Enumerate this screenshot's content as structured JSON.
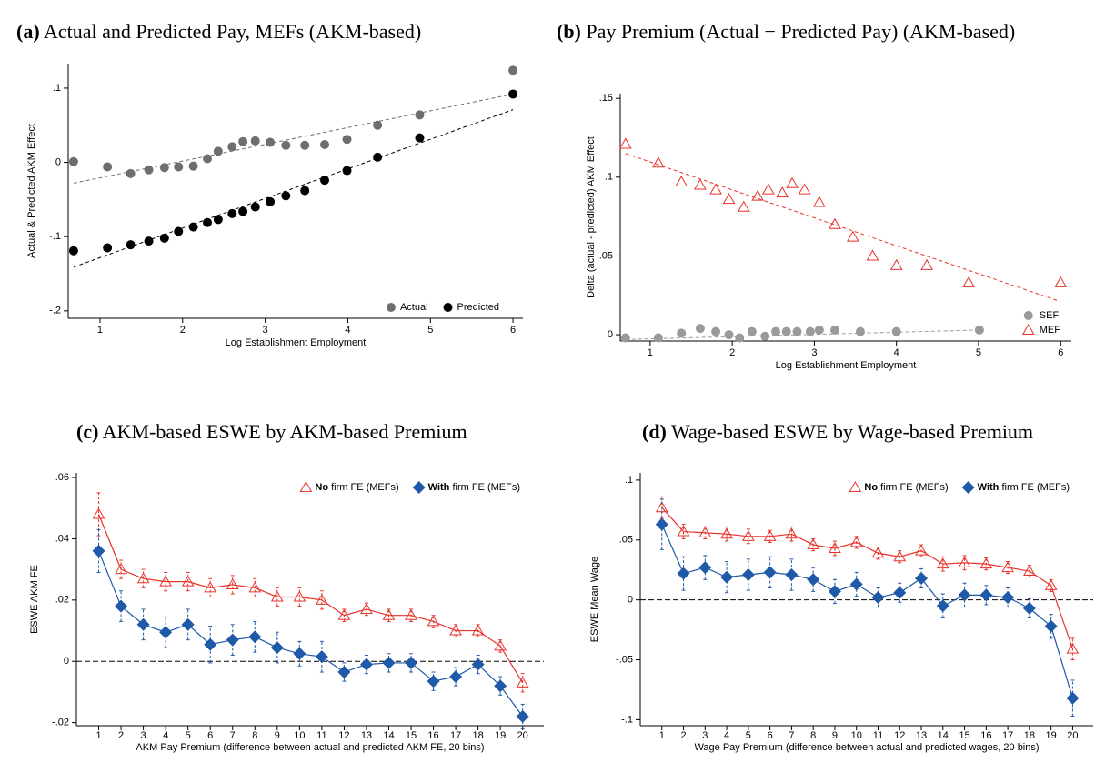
{
  "chart_data": [
    {
      "type": "scatter",
      "panel_label": "(a)",
      "title": "Actual and Predicted Pay, MEFs (AKM-based)",
      "x_label": "Log Establishment Employment",
      "y_label": "Actual & Predicted AKM Effect",
      "xlim": [
        0.615,
        6.12
      ],
      "ylim": [
        -0.21,
        0.133
      ],
      "xticks": [
        1,
        2,
        3,
        4,
        5,
        6
      ],
      "yticks": [
        {
          "value": -0.2,
          "label": "-.2"
        },
        {
          "value": -0.1,
          "label": "-.1"
        },
        0,
        {
          "value": 0.1,
          "label": ".1"
        }
      ],
      "legend": "lower right",
      "series": [
        {
          "name": "Actual",
          "color": "#6e6e6e",
          "marker": "circle",
          "x": [
            0.68,
            1.09,
            1.37,
            1.59,
            1.78,
            1.95,
            2.13,
            2.3,
            2.43,
            2.6,
            2.73,
            2.88,
            3.06,
            3.25,
            3.48,
            3.72,
            3.99,
            4.36,
            4.87,
            6.0
          ],
          "values": [
            0.001,
            -0.006,
            -0.015,
            -0.01,
            -0.007,
            -0.006,
            -0.005,
            0.005,
            0.015,
            0.021,
            0.028,
            0.029,
            0.027,
            0.023,
            0.023,
            0.024,
            0.031,
            0.05,
            0.064,
            0.124
          ],
          "fit": {
            "x": [
              0.68,
              6.0
            ],
            "values": [
              -0.028,
              0.092
            ]
          }
        },
        {
          "name": "Predicted",
          "color": "#000000",
          "marker": "circle",
          "x": [
            0.68,
            1.09,
            1.37,
            1.59,
            1.78,
            1.95,
            2.13,
            2.3,
            2.43,
            2.6,
            2.73,
            2.88,
            3.06,
            3.25,
            3.48,
            3.72,
            3.99,
            4.36,
            4.87,
            6.0
          ],
          "values": [
            -0.119,
            -0.115,
            -0.111,
            -0.106,
            -0.102,
            -0.093,
            -0.087,
            -0.081,
            -0.077,
            -0.069,
            -0.066,
            -0.06,
            -0.053,
            -0.045,
            -0.038,
            -0.024,
            -0.011,
            0.007,
            0.033,
            0.092
          ],
          "fit": {
            "x": [
              0.68,
              6.0
            ],
            "values": [
              -0.141,
              0.071
            ]
          }
        }
      ]
    },
    {
      "type": "scatter",
      "panel_label": "(b)",
      "title": "Pay Premium (Actual − Predicted Pay) (AKM-based)",
      "x_label": "Log Establishment Employment",
      "y_label": "Delta (actual - predicted) AKM Effect",
      "xlim": [
        0.636,
        6.13
      ],
      "ylim": [
        -0.004,
        0.153
      ],
      "xticks": [
        1,
        2,
        3,
        4,
        5,
        6
      ],
      "yticks": [
        0,
        {
          "value": 0.05,
          "label": ".05"
        },
        {
          "value": 0.1,
          "label": ".1"
        },
        {
          "value": 0.15,
          "label": ".15"
        }
      ],
      "legend": "lower right",
      "series": [
        {
          "name": "SEF",
          "color": "#9a9a9a",
          "marker": "circle",
          "x": [
            0.7,
            1.1,
            1.38,
            1.61,
            1.8,
            1.96,
            2.09,
            2.24,
            2.4,
            2.53,
            2.66,
            2.79,
            2.95,
            3.06,
            3.25,
            3.56,
            4.0,
            5.01
          ],
          "values": [
            -0.002,
            -0.002,
            0.001,
            0.004,
            0.002,
            0.0,
            -0.002,
            0.002,
            -0.001,
            0.002,
            0.002,
            0.002,
            0.002,
            0.003,
            0.003,
            0.002,
            0.002,
            0.003
          ],
          "fit": {
            "x": [
              0.7,
              5.01
            ],
            "values": [
              -0.003,
              0.003
            ]
          }
        },
        {
          "name": "MEF",
          "color": "#e8322a",
          "marker": "triangle",
          "x": [
            0.7,
            1.1,
            1.38,
            1.61,
            1.8,
            1.96,
            2.14,
            2.31,
            2.44,
            2.61,
            2.73,
            2.88,
            3.06,
            3.25,
            3.47,
            3.71,
            4.0,
            4.37,
            4.88,
            6.0
          ],
          "values": [
            0.121,
            0.109,
            0.097,
            0.095,
            0.092,
            0.086,
            0.081,
            0.088,
            0.092,
            0.09,
            0.096,
            0.092,
            0.084,
            0.07,
            0.062,
            0.05,
            0.044,
            0.044,
            0.033,
            0.033
          ],
          "fit": {
            "x": [
              0.7,
              6.0
            ],
            "values": [
              0.115,
              0.021
            ]
          }
        }
      ]
    },
    {
      "type": "line",
      "panel_label": "(c)",
      "title": "AKM-based ESWE by AKM-based Premium",
      "x_label": "AKM Pay Premium (difference between actual and predicted AKM FE, 20 bins)",
      "y_label": "ESWE AKM FE",
      "categories": [
        "1",
        "2",
        "3",
        "4",
        "5",
        "6",
        "7",
        "8",
        "9",
        "10",
        "11",
        "12",
        "13",
        "14",
        "15",
        "16",
        "17",
        "18",
        "19",
        "20"
      ],
      "ylim": [
        -0.021,
        0.0615
      ],
      "yticks": [
        {
          "value": -0.02,
          "label": "-.02"
        },
        0,
        {
          "value": 0.02,
          "label": ".02"
        },
        {
          "value": 0.04,
          "label": ".04"
        },
        {
          "value": 0.06,
          "label": ".06"
        }
      ],
      "hline": 0,
      "legend": "upper right",
      "series": [
        {
          "name": "No firm FE (MEFs)",
          "color": "#e8322a",
          "marker": "triangle",
          "values": [
            0.048,
            0.03,
            0.027,
            0.026,
            0.026,
            0.024,
            0.025,
            0.024,
            0.021,
            0.021,
            0.02,
            0.015,
            0.017,
            0.015,
            0.015,
            0.013,
            0.01,
            0.01,
            0.005,
            -0.007
          ],
          "errors": [
            0.007,
            0.003,
            0.003,
            0.003,
            0.003,
            0.003,
            0.003,
            0.003,
            0.003,
            0.003,
            0.003,
            0.002,
            0.002,
            0.002,
            0.002,
            0.002,
            0.002,
            0.002,
            0.002,
            0.003
          ]
        },
        {
          "name": "With firm FE (MEFs)",
          "color": "#1f5aa8",
          "marker": "diamond",
          "values": [
            0.036,
            0.018,
            0.012,
            0.0095,
            0.012,
            0.0055,
            0.007,
            0.008,
            0.0045,
            0.0025,
            0.0015,
            -0.0035,
            -0.001,
            -0.0005,
            -0.0005,
            -0.0065,
            -0.005,
            -0.001,
            -0.008,
            -0.018
          ],
          "errors": [
            0.007,
            0.005,
            0.005,
            0.005,
            0.005,
            0.006,
            0.005,
            0.005,
            0.005,
            0.004,
            0.005,
            0.003,
            0.003,
            0.003,
            0.003,
            0.003,
            0.003,
            0.003,
            0.003,
            0.004
          ]
        }
      ]
    },
    {
      "type": "line",
      "panel_label": "(d)",
      "title": "Wage-based ESWE by Wage-based Premium",
      "x_label": "Wage Pay Premium (difference between actual and predicted wages, 20 bins)",
      "y_label": "ESWE Mean Wage",
      "categories": [
        "1",
        "2",
        "3",
        "4",
        "5",
        "6",
        "7",
        "8",
        "9",
        "10",
        "11",
        "12",
        "13",
        "14",
        "15",
        "16",
        "17",
        "18",
        "19",
        "20"
      ],
      "ylim": [
        -0.105,
        0.106
      ],
      "yticks": [
        {
          "value": -0.1,
          "label": "-.1"
        },
        {
          "value": -0.05,
          "label": "-.05"
        },
        0,
        {
          "value": 0.05,
          "label": ".05"
        },
        {
          "value": 0.1,
          "label": ".1"
        }
      ],
      "hline": 0,
      "legend": "upper right",
      "series": [
        {
          "name": "No firm FE (MEFs)",
          "color": "#e8322a",
          "marker": "triangle",
          "values": [
            0.077,
            0.057,
            0.056,
            0.055,
            0.053,
            0.053,
            0.055,
            0.046,
            0.043,
            0.048,
            0.039,
            0.036,
            0.041,
            0.03,
            0.031,
            0.03,
            0.027,
            0.024,
            0.012,
            -0.041
          ],
          "errors": [
            0.009,
            0.006,
            0.005,
            0.006,
            0.006,
            0.005,
            0.006,
            0.005,
            0.006,
            0.005,
            0.005,
            0.005,
            0.005,
            0.006,
            0.006,
            0.005,
            0.005,
            0.005,
            0.005,
            0.009
          ]
        },
        {
          "name": "With firm FE (MEFs)",
          "color": "#1f5aa8",
          "marker": "diamond",
          "values": [
            0.063,
            0.022,
            0.027,
            0.019,
            0.021,
            0.023,
            0.021,
            0.017,
            0.007,
            0.013,
            0.002,
            0.006,
            0.018,
            -0.005,
            0.004,
            0.004,
            0.002,
            -0.007,
            -0.022,
            -0.082
          ],
          "errors": [
            0.021,
            0.014,
            0.01,
            0.013,
            0.013,
            0.013,
            0.013,
            0.01,
            0.01,
            0.01,
            0.008,
            0.008,
            0.008,
            0.01,
            0.01,
            0.008,
            0.008,
            0.008,
            0.01,
            0.015
          ]
        }
      ]
    }
  ]
}
